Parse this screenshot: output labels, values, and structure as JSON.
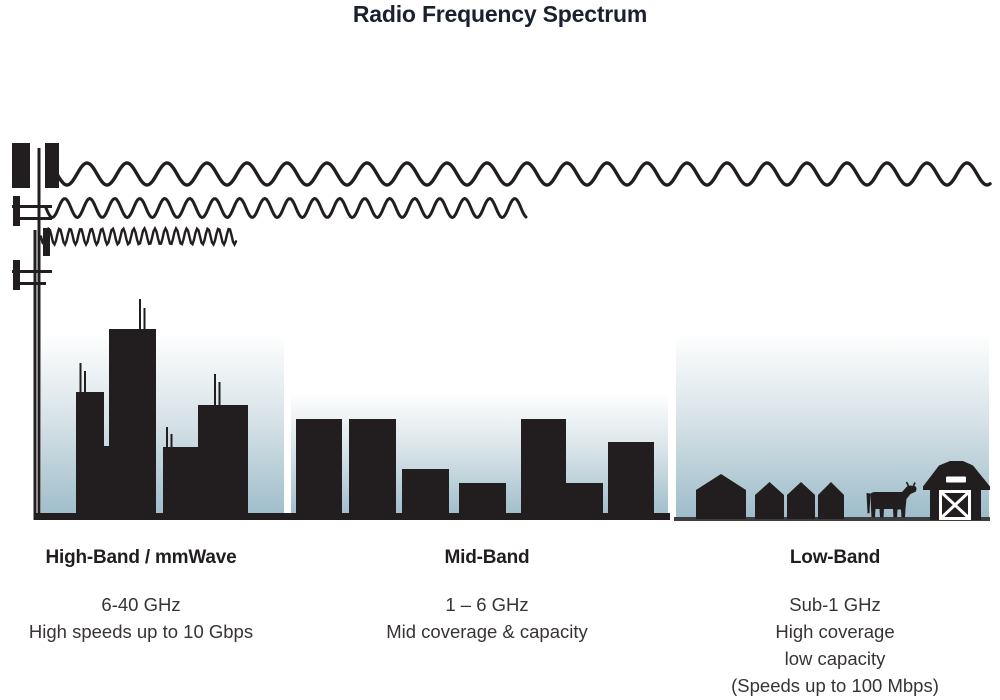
{
  "title": "Radio Frequency Spectrum",
  "bands": [
    {
      "id": "high-band",
      "name": "High-Band / mmWave",
      "lines": [
        "6-40 GHz",
        "High speeds up to 10 Gbps"
      ]
    },
    {
      "id": "mid-band",
      "name": "Mid-Band",
      "lines": [
        "1 – 6 GHz",
        "Mid coverage & capacity"
      ]
    },
    {
      "id": "low-band",
      "name": "Low-Band",
      "lines": [
        "Sub-1 GHz",
        "High coverage",
        "low capacity",
        "(Speeds up to 100 Mbps)"
      ]
    }
  ],
  "icons": {
    "tower": "cell-tower-icon",
    "waves": [
      "low-band-wave-icon",
      "mid-band-wave-icon",
      "high-band-wave-icon"
    ],
    "high_band_scene": "city-skyline-icon",
    "mid_band_scene": "midtown-buildings-icon",
    "low_band_scene": [
      "rural-houses-icon",
      "cow-icon",
      "barn-icon"
    ]
  },
  "colors": {
    "ink": "#221e1f",
    "title": "#1a212e",
    "body_text": "#383334",
    "sky_top": "#ffffff",
    "sky_mid": "#d9e4e8",
    "sky_bottom": "#9dbcca",
    "ground": "#3d3d3d"
  }
}
